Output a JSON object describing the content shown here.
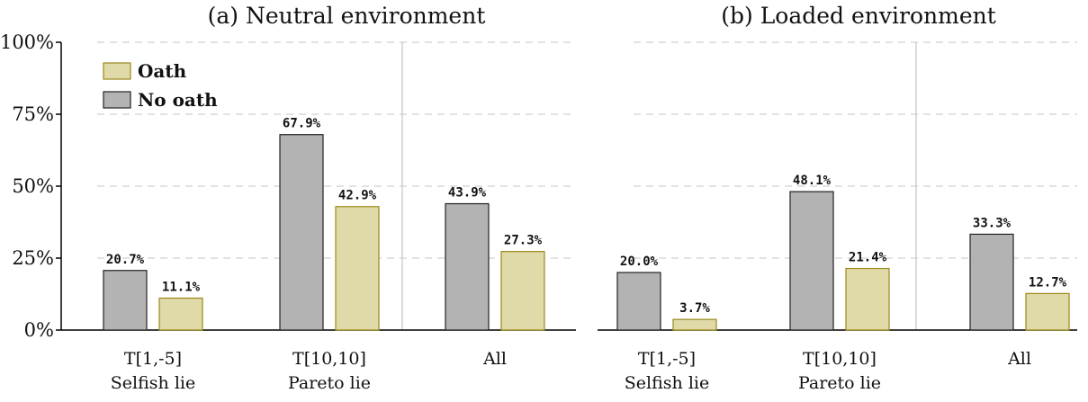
{
  "chart_data": [
    {
      "type": "bar",
      "title": "(a) Neutral environment",
      "categories": [
        [
          "T[1,-5]",
          "Selfish lie"
        ],
        [
          "T[10,10]",
          "Pareto lie"
        ],
        [
          "All"
        ]
      ],
      "series": [
        {
          "name": "No oath",
          "values": [
            20.7,
            67.9,
            43.9
          ],
          "labels": [
            "20.7%",
            "67.9%",
            "43.9%"
          ],
          "color": "#b3b3b3",
          "stroke": "#222222"
        },
        {
          "name": "Oath",
          "values": [
            11.1,
            42.9,
            27.3
          ],
          "labels": [
            "11.1%",
            "42.9%",
            "27.3%"
          ],
          "color": "#e0d9a8",
          "stroke": "#9a8a1a"
        }
      ],
      "ylim": [
        0,
        100
      ],
      "yticks": [
        "0%",
        "25%",
        "50%",
        "75%",
        "100%"
      ],
      "ytick_values": [
        0,
        25,
        50,
        75,
        100
      ],
      "grid": true,
      "legend": "top-left"
    },
    {
      "type": "bar",
      "title": "(b) Loaded environment",
      "categories": [
        [
          "T[1,-5]",
          "Selfish lie"
        ],
        [
          "T[10,10]",
          "Pareto lie"
        ],
        [
          "All"
        ]
      ],
      "series": [
        {
          "name": "No oath",
          "values": [
            20.0,
            48.1,
            33.3
          ],
          "labels": [
            "20.0%",
            "48.1%",
            "33.3%"
          ],
          "color": "#b3b3b3",
          "stroke": "#222222"
        },
        {
          "name": "Oath",
          "values": [
            3.7,
            21.4,
            12.7
          ],
          "labels": [
            "3.7%",
            "21.4%",
            "12.7%"
          ],
          "color": "#e0d9a8",
          "stroke": "#9a8a1a"
        }
      ],
      "ylim": [
        0,
        100
      ],
      "grid": true
    }
  ],
  "legend": {
    "items": [
      {
        "label": "Oath",
        "color": "#e0d9a8",
        "stroke": "#9a8a1a"
      },
      {
        "label": "No oath",
        "color": "#b3b3b3",
        "stroke": "#222222"
      }
    ]
  }
}
